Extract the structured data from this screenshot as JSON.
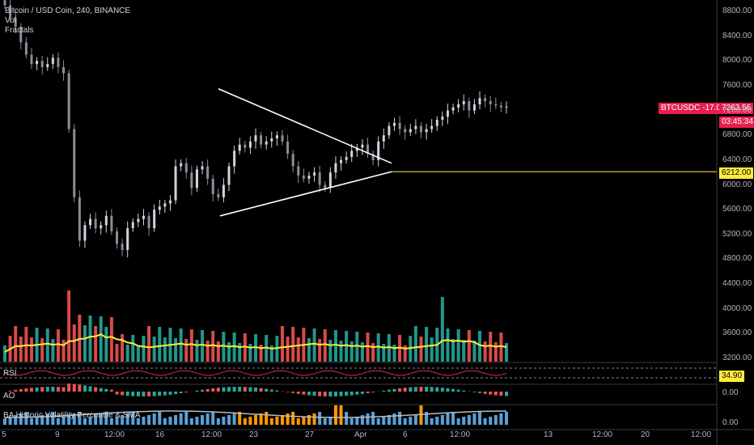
{
  "header": {
    "symbol_line": "Bitcoin / USD Coin, 240, BINANCE",
    "indicators": [
      "Vol",
      "Fractals"
    ]
  },
  "panes": {
    "rsi_label": "RSI",
    "rsi_value": "34.90",
    "ao_label": "AO",
    "ao_value": "0.00",
    "hvp_label": "BA Historic Volatility Percentile & SMA",
    "hvp_value": "0.00"
  },
  "price_tags": {
    "symbol_label": "BTCUSDC -17.03%",
    "last_price": "7263.56",
    "countdown": "03:45:34",
    "horizontal_line_price": "6212.00"
  },
  "colors": {
    "up": "#26a69a",
    "down": "#ef5350",
    "volume_ma": "#ffeb3b",
    "rsi_line": "#e91e63",
    "tag_red": "#e91e4f",
    "tag_yellow": "#ffeb3b",
    "trendline": "#ffffff"
  },
  "chart_data": {
    "type": "candlestick",
    "y_ticks": [
      "8800.00",
      "8400.00",
      "8000.00",
      "7600.00",
      "7200.00",
      "6800.00",
      "6400.00",
      "6000.00",
      "5600.00",
      "5200.00",
      "4800.00",
      "4400.00",
      "4000.00",
      "3600.00",
      "3200.00"
    ],
    "x_ticks": [
      "5",
      "9",
      "12:00",
      "16",
      "12:00",
      "23",
      "27",
      "Apr",
      "6",
      "12:00",
      "13",
      "12:00",
      "20",
      "12:00"
    ],
    "ylim": [
      3200,
      8800
    ],
    "close_series": [
      8900,
      8700,
      8550,
      8300,
      8100,
      7950,
      8000,
      7900,
      7950,
      8050,
      7900,
      7800,
      6900,
      5800,
      5100,
      5350,
      5450,
      5300,
      5350,
      5500,
      5250,
      5050,
      4950,
      5300,
      5400,
      5450,
      5500,
      5300,
      5600,
      5650,
      5700,
      5750,
      6300,
      6350,
      6200,
      5950,
      6250,
      6300,
      6100,
      5850,
      5800,
      6000,
      6300,
      6550,
      6650,
      6600,
      6700,
      6800,
      6650,
      6700,
      6750,
      6800,
      6700,
      6500,
      6300,
      6150,
      6100,
      6150,
      6200,
      6000,
      5950,
      6200,
      6350,
      6400,
      6450,
      6550,
      6600,
      6650,
      6500,
      6400,
      6700,
      6800,
      6950,
      7000,
      6900,
      6850,
      6900,
      6950,
      6850,
      6900,
      6950,
      7050,
      7100,
      7200,
      7250,
      7300,
      7350,
      7200,
      7300,
      7400,
      7350,
      7300,
      7280,
      7250,
      7263
    ],
    "horizontal_line": 6212,
    "triangle_upper": [
      [
        6900,
        7550
      ],
      [
        7085,
        6350
      ]
    ],
    "triangle_lower": [
      [
        6900,
        5500
      ],
      [
        7085,
        6212
      ]
    ]
  }
}
